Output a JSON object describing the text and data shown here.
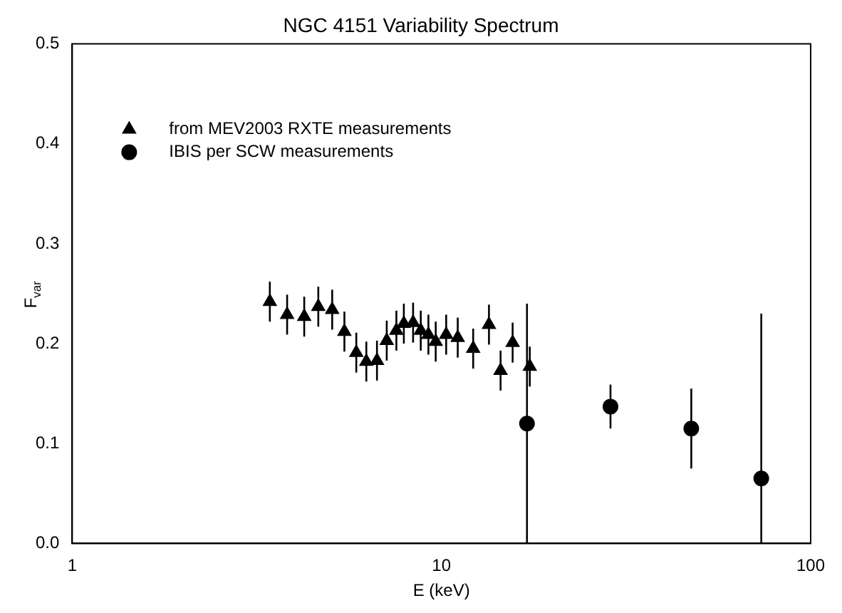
{
  "chart_data": {
    "type": "scatter",
    "title": "NGC 4151 Variability Spectrum",
    "xlabel": "E (keV)",
    "ylabel": "F$_{var}$",
    "log": "x",
    "xlim": [
      1,
      100
    ],
    "xticks": [
      1,
      10,
      100
    ],
    "ylim": [
      0,
      0.5
    ],
    "yticks": [
      {
        "value": 0,
        "label": "0.0"
      },
      0.1,
      0.2,
      0.3,
      0.4,
      0.5
    ],
    "grid": false,
    "legend": "top left",
    "series": [
      {
        "name": "from MEV2003 RXTE measurements",
        "color": "#000000",
        "marker": "triangle",
        "x": [
          3.43,
          3.82,
          4.25,
          4.64,
          5.06,
          5.46,
          5.88,
          6.26,
          6.69,
          7.11,
          7.55,
          7.91,
          8.38,
          8.79,
          9.22,
          9.65,
          10.3,
          11.07,
          12.19,
          13.45,
          14.46,
          15.59,
          17.35
        ],
        "values": [
          0.242,
          0.229,
          0.227,
          0.237,
          0.234,
          0.212,
          0.191,
          0.182,
          0.183,
          0.203,
          0.213,
          0.22,
          0.221,
          0.213,
          0.209,
          0.202,
          0.209,
          0.206,
          0.195,
          0.219,
          0.173,
          0.201,
          0.177
        ],
        "errors": [
          0.02,
          0.02,
          0.02,
          0.02,
          0.02,
          0.02,
          0.02,
          0.02,
          0.02,
          0.02,
          0.02,
          0.02,
          0.02,
          0.02,
          0.02,
          0.02,
          0.02,
          0.02,
          0.02,
          0.02,
          0.02,
          0.02,
          0.02
        ]
      },
      {
        "name": "IBIS per SCW measurements",
        "color": "#000000",
        "marker": "circle",
        "x": [
          17.05,
          28.7,
          47.5,
          73.5
        ],
        "values": [
          0.12,
          0.137,
          0.115,
          0.065
        ],
        "errors": [
          [
            0,
            0.24
          ],
          0.022,
          0.04,
          [
            0,
            0.23
          ]
        ]
      }
    ]
  }
}
